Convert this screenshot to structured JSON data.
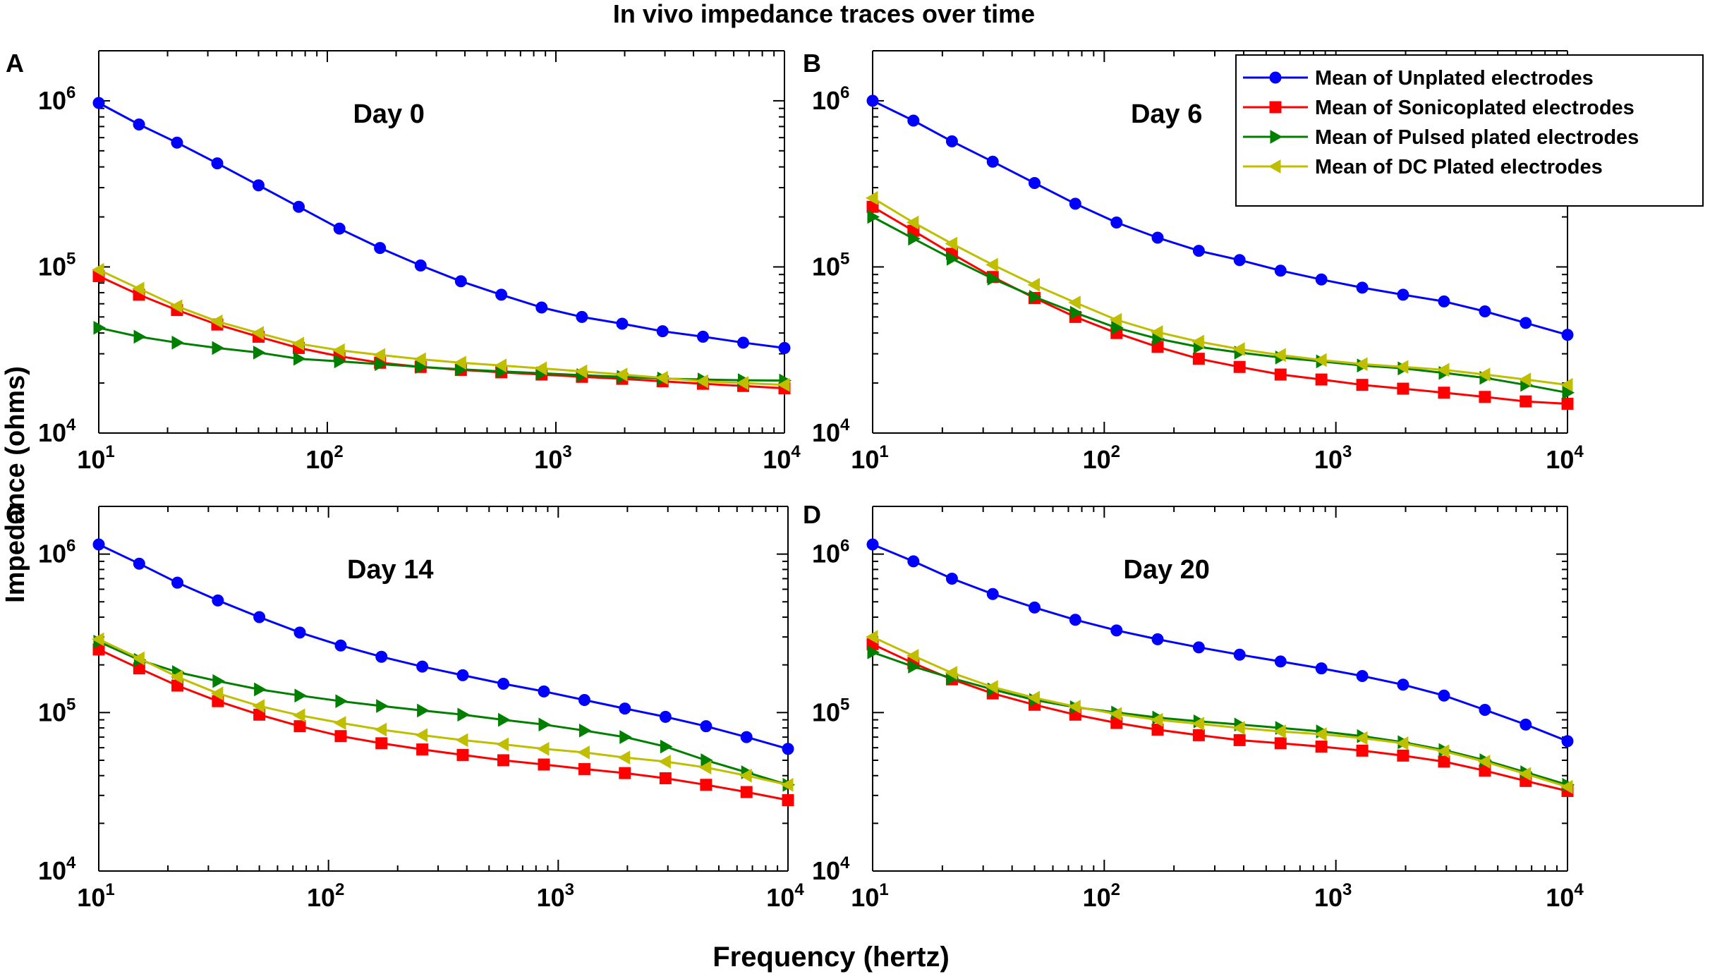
{
  "figure": {
    "title": "In vivo impedance traces over time",
    "xlabel": "Frequency (hertz)",
    "ylabel": "Impedance (ohms)"
  },
  "legend": {
    "placement": "top-right",
    "entries": [
      {
        "label": "Mean of Unplated electrodes",
        "color": "#0000ff",
        "marker": "circle"
      },
      {
        "label": "Mean of Sonicoplated electrodes",
        "color": "#ff0000",
        "marker": "square"
      },
      {
        "label": "Mean of Pulsed plated electrodes",
        "color": "#007f00",
        "marker": "triangle-right"
      },
      {
        "label": "Mean of DC Plated electrodes",
        "color": "#bfbf00",
        "marker": "triangle-left"
      }
    ]
  },
  "chart_data": [
    {
      "type": "line",
      "panel": "A",
      "title": "Day 0",
      "x": [
        10,
        15,
        22,
        33,
        50,
        75,
        113,
        170,
        256,
        384,
        577,
        866,
        1300,
        1950,
        2930,
        4400,
        6600,
        10000
      ],
      "xscale": "log",
      "yscale": "log",
      "xlim": [
        10,
        10000
      ],
      "ylim": [
        10000,
        2000000
      ],
      "xticks": [
        {
          "v": 10,
          "b": "10",
          "e": "1"
        },
        {
          "v": 100,
          "b": "10",
          "e": "2"
        },
        {
          "v": 1000,
          "b": "10",
          "e": "3"
        },
        {
          "v": 10000,
          "b": "10",
          "e": "4"
        }
      ],
      "yticks": [
        {
          "v": 10000,
          "b": "10",
          "e": "4"
        },
        {
          "v": 100000,
          "b": "10",
          "e": "5"
        },
        {
          "v": 1000000,
          "b": "10",
          "e": "6"
        }
      ],
      "series": [
        {
          "name": "Mean of Unplated electrodes",
          "color": "#0000ff",
          "marker": "circle",
          "values": [
            970000,
            720000,
            560000,
            420000,
            310000,
            230000,
            170000,
            130000,
            102000,
            82000,
            68000,
            57000,
            50000,
            45500,
            41000,
            38000,
            35000,
            32500
          ]
        },
        {
          "name": "Mean of Sonicoplated electrodes",
          "color": "#ff0000",
          "marker": "square",
          "values": [
            88000,
            68000,
            55000,
            45000,
            38000,
            32500,
            29000,
            26500,
            25000,
            24000,
            23200,
            22500,
            21800,
            21200,
            20500,
            19800,
            19200,
            18600
          ]
        },
        {
          "name": "Mean of Pulsed plated electrodes",
          "color": "#007f00",
          "marker": "triangle-right",
          "values": [
            43000,
            38000,
            35000,
            32500,
            30500,
            28000,
            27000,
            26000,
            25000,
            24200,
            23500,
            22900,
            22300,
            21800,
            21300,
            21000,
            20800,
            20700
          ]
        },
        {
          "name": "Mean of DC Plated electrodes",
          "color": "#bfbf00",
          "marker": "triangle-left",
          "values": [
            96000,
            74000,
            58000,
            47000,
            40000,
            34500,
            31500,
            29500,
            27800,
            26500,
            25500,
            24500,
            23500,
            22500,
            21500,
            20500,
            20000,
            19500
          ]
        }
      ]
    },
    {
      "type": "line",
      "panel": "B",
      "title": "Day 6",
      "x": [
        10,
        15,
        22,
        33,
        50,
        75,
        113,
        170,
        256,
        384,
        577,
        866,
        1300,
        1950,
        2930,
        4400,
        6600,
        10000
      ],
      "xscale": "log",
      "yscale": "log",
      "xlim": [
        10,
        10000
      ],
      "ylim": [
        10000,
        2000000
      ],
      "xticks": [
        {
          "v": 10,
          "b": "10",
          "e": "1"
        },
        {
          "v": 100,
          "b": "10",
          "e": "2"
        },
        {
          "v": 1000,
          "b": "10",
          "e": "3"
        },
        {
          "v": 10000,
          "b": "10",
          "e": "4"
        }
      ],
      "yticks": [
        {
          "v": 10000,
          "b": "10",
          "e": "4"
        },
        {
          "v": 100000,
          "b": "10",
          "e": "5"
        },
        {
          "v": 1000000,
          "b": "10",
          "e": "6"
        }
      ],
      "series": [
        {
          "name": "Mean of Unplated electrodes",
          "color": "#0000ff",
          "marker": "circle",
          "values": [
            1000000,
            760000,
            570000,
            430000,
            320000,
            240000,
            185000,
            150000,
            125000,
            110000,
            95000,
            84000,
            75000,
            68000,
            62000,
            54000,
            46000,
            39000
          ]
        },
        {
          "name": "Mean of Sonicoplated electrodes",
          "color": "#ff0000",
          "marker": "square",
          "values": [
            230000,
            165000,
            120000,
            87000,
            65000,
            50000,
            40000,
            33000,
            28000,
            25000,
            22500,
            21000,
            19500,
            18500,
            17500,
            16500,
            15500,
            15000
          ]
        },
        {
          "name": "Mean of Pulsed plated electrodes",
          "color": "#007f00",
          "marker": "triangle-right",
          "values": [
            200000,
            148000,
            112000,
            85000,
            66000,
            53000,
            43000,
            37000,
            33000,
            30500,
            28500,
            27000,
            25500,
            24500,
            23000,
            21500,
            19500,
            17500
          ]
        },
        {
          "name": "Mean of DC Plated electrodes",
          "color": "#bfbf00",
          "marker": "triangle-left",
          "values": [
            260000,
            185000,
            138000,
            103000,
            78000,
            61000,
            48000,
            40500,
            35500,
            32000,
            29500,
            27500,
            26000,
            25000,
            24000,
            22500,
            21000,
            19500
          ]
        }
      ]
    },
    {
      "type": "line",
      "panel": "C",
      "title": "Day 14",
      "x": [
        10,
        15,
        22,
        33,
        50,
        75,
        113,
        170,
        256,
        384,
        577,
        866,
        1300,
        1950,
        2930,
        4400,
        6600,
        10000
      ],
      "xscale": "log",
      "yscale": "log",
      "xlim": [
        10,
        10000
      ],
      "ylim": [
        10000,
        2000000
      ],
      "xticks": [
        {
          "v": 10,
          "b": "10",
          "e": "1"
        },
        {
          "v": 100,
          "b": "10",
          "e": "2"
        },
        {
          "v": 1000,
          "b": "10",
          "e": "3"
        },
        {
          "v": 10000,
          "b": "10",
          "e": "4"
        }
      ],
      "yticks": [
        {
          "v": 10000,
          "b": "10",
          "e": "4"
        },
        {
          "v": 100000,
          "b": "10",
          "e": "5"
        },
        {
          "v": 1000000,
          "b": "10",
          "e": "6"
        }
      ],
      "series": [
        {
          "name": "Mean of Unplated electrodes",
          "color": "#0000ff",
          "marker": "circle",
          "values": [
            1150000,
            870000,
            660000,
            510000,
            400000,
            320000,
            265000,
            225000,
            195000,
            172000,
            152000,
            136000,
            120000,
            106000,
            94000,
            82000,
            70000,
            59000
          ]
        },
        {
          "name": "Mean of Sonicoplated electrodes",
          "color": "#ff0000",
          "marker": "square",
          "values": [
            250000,
            190000,
            148000,
            118000,
            97000,
            82000,
            71000,
            64000,
            58500,
            54000,
            50000,
            47000,
            44000,
            41500,
            38500,
            35000,
            31500,
            28000
          ]
        },
        {
          "name": "Mean of Pulsed plated electrodes",
          "color": "#007f00",
          "marker": "triangle-right",
          "values": [
            280000,
            215000,
            180000,
            158000,
            140000,
            128000,
            118000,
            110000,
            103000,
            97000,
            90000,
            84000,
            77000,
            70000,
            61000,
            50000,
            42000,
            35000
          ]
        },
        {
          "name": "Mean of DC Plated electrodes",
          "color": "#bfbf00",
          "marker": "triangle-left",
          "values": [
            290000,
            220000,
            168000,
            132000,
            110000,
            96000,
            86000,
            78000,
            72000,
            67000,
            63000,
            59000,
            56000,
            52000,
            49000,
            45000,
            40000,
            35000
          ]
        }
      ]
    },
    {
      "type": "line",
      "panel": "D",
      "title": "Day 20",
      "x": [
        10,
        15,
        22,
        33,
        50,
        75,
        113,
        170,
        256,
        384,
        577,
        866,
        1300,
        1950,
        2930,
        4400,
        6600,
        10000
      ],
      "xscale": "log",
      "yscale": "log",
      "xlim": [
        10,
        10000
      ],
      "ylim": [
        10000,
        2000000
      ],
      "xticks": [
        {
          "v": 10,
          "b": "10",
          "e": "1"
        },
        {
          "v": 100,
          "b": "10",
          "e": "2"
        },
        {
          "v": 1000,
          "b": "10",
          "e": "3"
        },
        {
          "v": 10000,
          "b": "10",
          "e": "4"
        }
      ],
      "yticks": [
        {
          "v": 10000,
          "b": "10",
          "e": "4"
        },
        {
          "v": 100000,
          "b": "10",
          "e": "5"
        },
        {
          "v": 1000000,
          "b": "10",
          "e": "6"
        }
      ],
      "series": [
        {
          "name": "Mean of Unplated electrodes",
          "color": "#0000ff",
          "marker": "circle",
          "values": [
            1150000,
            900000,
            700000,
            560000,
            460000,
            385000,
            330000,
            290000,
            258000,
            232000,
            210000,
            190000,
            170000,
            150000,
            128000,
            104000,
            84000,
            66000
          ]
        },
        {
          "name": "Mean of Sonicoplated electrodes",
          "color": "#ff0000",
          "marker": "square",
          "values": [
            270000,
            205000,
            162000,
            132000,
            112000,
            97000,
            86000,
            78000,
            72000,
            67000,
            64000,
            61000,
            57500,
            53500,
            49000,
            43000,
            37000,
            32000
          ]
        },
        {
          "name": "Mean of Pulsed plated electrodes",
          "color": "#007f00",
          "marker": "triangle-right",
          "values": [
            240000,
            195000,
            165000,
            140000,
            120000,
            108000,
            100000,
            93000,
            88000,
            84000,
            80000,
            76000,
            71000,
            65000,
            58000,
            50000,
            42000,
            35000
          ]
        },
        {
          "name": "Mean of DC Plated electrodes",
          "color": "#bfbf00",
          "marker": "triangle-left",
          "values": [
            300000,
            228000,
            178000,
            145000,
            124000,
            109000,
            98000,
            90000,
            85000,
            80000,
            76000,
            73000,
            69000,
            64000,
            57000,
            49000,
            41000,
            34000
          ]
        }
      ]
    }
  ]
}
